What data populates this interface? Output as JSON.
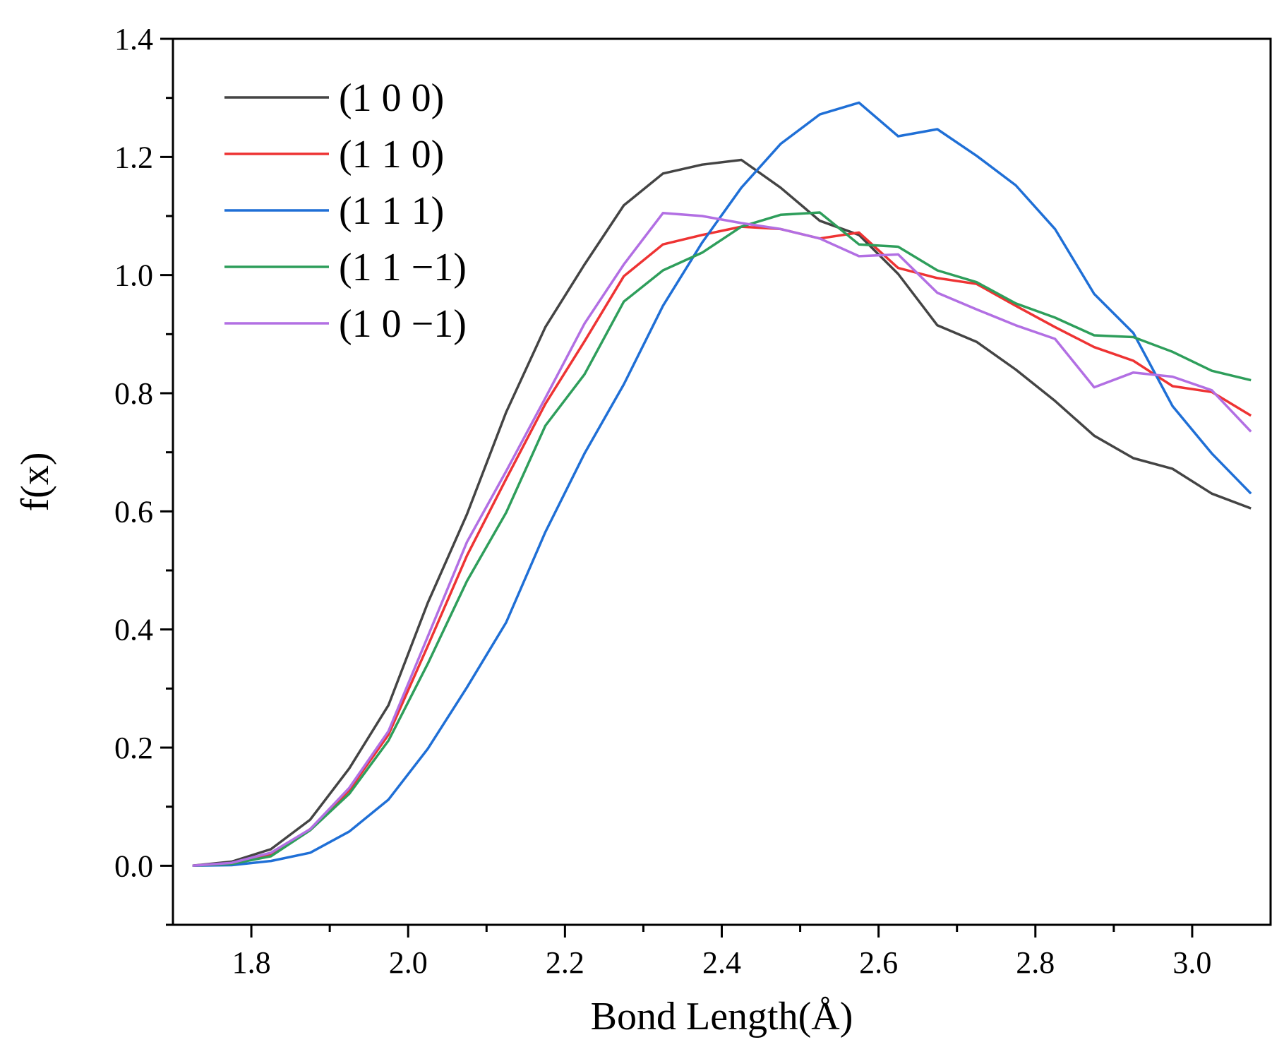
{
  "chart_data": {
    "type": "line",
    "title": "",
    "xlabel": "Bond Length(Å)",
    "ylabel": "f(x)",
    "xlim": [
      1.7,
      3.1
    ],
    "ylim": [
      -0.1,
      1.4
    ],
    "xticks": [
      1.8,
      2.0,
      2.2,
      2.4,
      2.6,
      2.8,
      3.0
    ],
    "xtick_labels": [
      "1.8",
      "2.0",
      "2.2",
      "2.4",
      "2.6",
      "2.8",
      "3.0"
    ],
    "yticks": [
      0.0,
      0.2,
      0.4,
      0.6,
      0.8,
      1.0,
      1.2,
      1.4
    ],
    "ytick_labels": [
      "0.0",
      "0.2",
      "0.4",
      "0.6",
      "0.8",
      "1.0",
      "1.2",
      "1.4"
    ],
    "grid": false,
    "legend_position": "top-left",
    "x": [
      1.725,
      1.775,
      1.825,
      1.875,
      1.925,
      1.975,
      2.025,
      2.075,
      2.125,
      2.175,
      2.225,
      2.275,
      2.325,
      2.375,
      2.425,
      2.475,
      2.525,
      2.575,
      2.625,
      2.675,
      2.725,
      2.775,
      2.825,
      2.875,
      2.925,
      2.975,
      3.025,
      3.075
    ],
    "series": [
      {
        "name": "(1 0 0)",
        "color": "#444444",
        "values": [
          0.0,
          0.007,
          0.028,
          0.078,
          0.165,
          0.272,
          0.445,
          0.595,
          0.768,
          0.912,
          1.018,
          1.118,
          1.172,
          1.187,
          1.195,
          1.148,
          1.092,
          1.068,
          1.002,
          0.915,
          0.887,
          0.84,
          0.787,
          0.728,
          0.69,
          0.672,
          0.63,
          0.605
        ]
      },
      {
        "name": "(1 1 0)",
        "color": "#EE3333",
        "values": [
          0.0,
          0.004,
          0.018,
          0.062,
          0.128,
          0.222,
          0.372,
          0.525,
          0.655,
          0.782,
          0.888,
          0.998,
          1.052,
          1.068,
          1.082,
          1.078,
          1.062,
          1.072,
          1.012,
          0.995,
          0.985,
          0.948,
          0.912,
          0.878,
          0.855,
          0.812,
          0.802,
          0.762
        ]
      },
      {
        "name": "(1 1 1)",
        "color": "#1F6FD6",
        "values": [
          0.0,
          0.001,
          0.008,
          0.022,
          0.058,
          0.112,
          0.198,
          0.302,
          0.412,
          0.565,
          0.698,
          0.815,
          0.948,
          1.055,
          1.148,
          1.222,
          1.272,
          1.292,
          1.235,
          1.247,
          1.202,
          1.152,
          1.078,
          0.968,
          0.902,
          0.778,
          0.698,
          0.63
        ]
      },
      {
        "name": "(1 1 −1)",
        "color": "#2E9E5B",
        "values": [
          0.0,
          0.003,
          0.016,
          0.06,
          0.122,
          0.212,
          0.342,
          0.482,
          0.598,
          0.745,
          0.832,
          0.955,
          1.008,
          1.038,
          1.082,
          1.102,
          1.106,
          1.052,
          1.048,
          1.008,
          0.988,
          0.952,
          0.928,
          0.898,
          0.895,
          0.87,
          0.838,
          0.822
        ]
      },
      {
        "name": "(1 0 −1)",
        "color": "#B26FE3",
        "values": [
          0.0,
          0.005,
          0.022,
          0.062,
          0.132,
          0.228,
          0.388,
          0.548,
          0.668,
          0.792,
          0.918,
          1.018,
          1.105,
          1.1,
          1.088,
          1.078,
          1.062,
          1.032,
          1.035,
          0.97,
          0.942,
          0.915,
          0.892,
          0.81,
          0.835,
          0.828,
          0.805,
          0.735
        ]
      }
    ]
  }
}
